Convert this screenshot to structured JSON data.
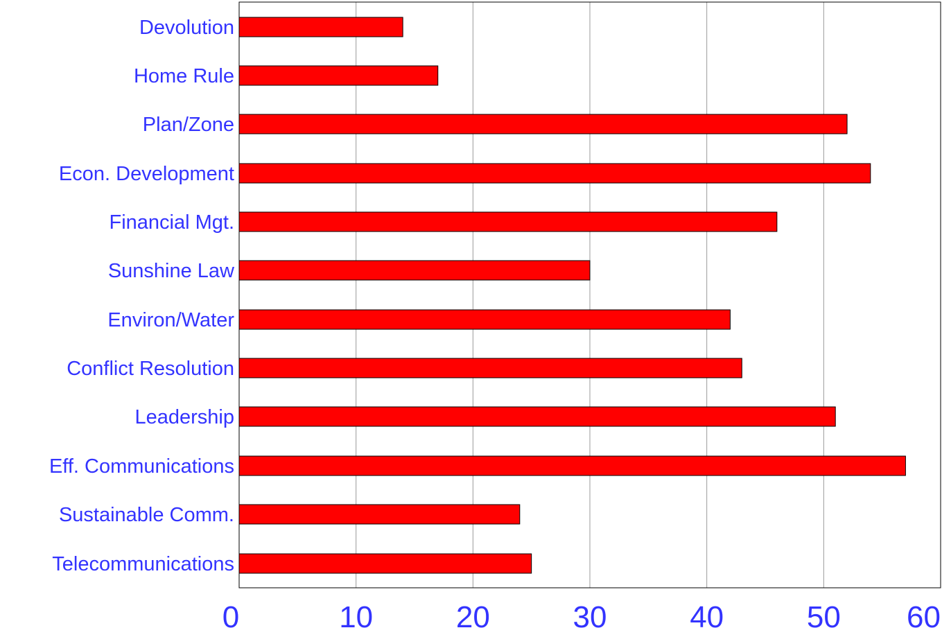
{
  "chart_data": {
    "type": "bar",
    "orientation": "horizontal",
    "categories": [
      "Devolution",
      "Home Rule",
      "Plan/Zone",
      "Econ. Development",
      "Financial Mgt.",
      "Sunshine Law",
      "Environ/Water",
      "Conflict Resolution",
      "Leadership",
      "Eff. Communications",
      "Sustainable Comm.",
      "Telecommunications"
    ],
    "values": [
      14,
      17,
      52,
      54,
      46,
      30,
      42,
      43,
      51,
      57,
      24,
      25
    ],
    "xlim": [
      0,
      60
    ],
    "x_ticks": [
      "0",
      "10",
      "20",
      "30",
      "40",
      "50",
      "60"
    ],
    "grid": true,
    "legend": false,
    "title": "",
    "xlabel": "",
    "ylabel": "",
    "colors": {
      "bar": "#ff0000",
      "bar_outline": "#000000",
      "label_text": "#3333ff",
      "tick_text": "#3333ff",
      "grid": "#999999",
      "axis": "#000000"
    }
  }
}
